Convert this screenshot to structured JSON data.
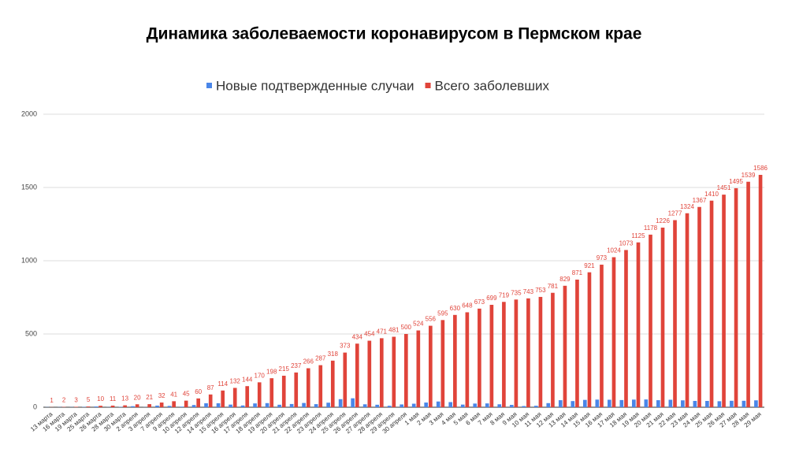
{
  "chart_data": {
    "type": "bar",
    "title": "Динамика заболеваемости коронавирусом в Пермском крае",
    "categories": [
      "13 марта",
      "16 марта",
      "19 марта",
      "25 марта",
      "26 марта",
      "28 марта",
      "30 марта",
      "2 апреля",
      "3 апреля",
      "7 апреля",
      "9 апреля",
      "10 апреля",
      "12 апреля",
      "14 апреля",
      "15 апреля",
      "16 апреля",
      "17 апреля",
      "18 апреля",
      "19 апреля",
      "20 апреля",
      "21 апреля",
      "22 апреля",
      "23 апреля",
      "24 апреля",
      "25 апреля",
      "26 апреля",
      "27 апреля",
      "28 апреля",
      "29 апреля",
      "30 апреля",
      "1 мая",
      "2 мая",
      "3 мая",
      "4 мая",
      "5 мая",
      "6 мая",
      "7 мая",
      "8 мая",
      "9 мая",
      "10 мая",
      "11 мая",
      "12 мая",
      "13 мая",
      "14 мая",
      "15 мая",
      "16 мая",
      "17 мая",
      "18 мая",
      "19 мая",
      "20 мая",
      "21 мая",
      "22 мая",
      "23 мая",
      "24 мая",
      "25 мая",
      "26 мая",
      "27 мая",
      "28 мая",
      "29 мая"
    ],
    "series": [
      {
        "name": "Новые подтвержденные случаи",
        "color": "#4a86e8",
        "values": [
          1,
          1,
          1,
          2,
          5,
          1,
          2,
          7,
          1,
          11,
          9,
          4,
          15,
          27,
          27,
          18,
          12,
          26,
          28,
          17,
          22,
          29,
          21,
          31,
          55,
          61,
          20,
          17,
          10,
          19,
          24,
          32,
          39,
          35,
          18,
          25,
          26,
          20,
          16,
          8,
          10,
          28,
          48,
          42,
          50,
          52,
          51,
          49,
          52,
          53,
          48,
          51,
          47,
          43,
          43,
          41,
          44,
          44,
          47
        ]
      },
      {
        "name": "Всего заболевших",
        "color": "#e0443a",
        "show_value_labels": true,
        "values": [
          1,
          2,
          3,
          5,
          10,
          11,
          13,
          20,
          21,
          32,
          41,
          45,
          60,
          87,
          114,
          132,
          144,
          170,
          198,
          215,
          237,
          266,
          287,
          318,
          373,
          434,
          454,
          471,
          481,
          500,
          524,
          556,
          595,
          630,
          648,
          673,
          699,
          719,
          735,
          743,
          753,
          781,
          829,
          871,
          921,
          973,
          1024,
          1073,
          1125,
          1178,
          1226,
          1277,
          1324,
          1367,
          1410,
          1451,
          1495,
          1539,
          1586
        ]
      }
    ],
    "ylim": [
      0,
      2000
    ],
    "yticks": [
      0,
      500,
      1000,
      1500,
      2000
    ],
    "grid": true
  }
}
